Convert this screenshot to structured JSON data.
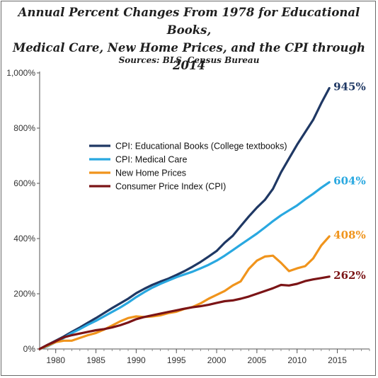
{
  "title_line1": "Annual Percent Changes From 1978 for Educational Books,",
  "title_line2": "Medical Care, New Home Prices, and the CPI through 2014",
  "subtitle": "Sources: BLS, Census Bureau",
  "chart_data": {
    "type": "line",
    "xlim": [
      1978,
      2019
    ],
    "ylim": [
      0,
      1000
    ],
    "x_ticks": [
      1980,
      1985,
      1990,
      1995,
      2000,
      2005,
      2010,
      2015
    ],
    "x_tick_labels": [
      "1980",
      "1985",
      "1990",
      "1995",
      "2000",
      "2005",
      "2010",
      "2015"
    ],
    "y_ticks": [
      0,
      200,
      400,
      600,
      800,
      1000
    ],
    "y_tick_labels": [
      "0%",
      "200%",
      "400%",
      "600%",
      "800%",
      "1,000%"
    ],
    "grid": false,
    "legend_position": "upper-left",
    "series": [
      {
        "name": "CPI: Educational Books  (College textbooks)",
        "color": "#1f3864",
        "end_label": "945%",
        "points": [
          [
            1978,
            0
          ],
          [
            1979,
            15
          ],
          [
            1980,
            30
          ],
          [
            1981,
            45
          ],
          [
            1982,
            62
          ],
          [
            1983,
            78
          ],
          [
            1984,
            95
          ],
          [
            1985,
            112
          ],
          [
            1986,
            130
          ],
          [
            1987,
            148
          ],
          [
            1988,
            165
          ],
          [
            1989,
            182
          ],
          [
            1990,
            202
          ],
          [
            1991,
            218
          ],
          [
            1992,
            232
          ],
          [
            1993,
            244
          ],
          [
            1994,
            255
          ],
          [
            1995,
            268
          ],
          [
            1996,
            282
          ],
          [
            1997,
            298
          ],
          [
            1998,
            315
          ],
          [
            1999,
            335
          ],
          [
            2000,
            355
          ],
          [
            2001,
            385
          ],
          [
            2002,
            410
          ],
          [
            2003,
            445
          ],
          [
            2004,
            480
          ],
          [
            2005,
            512
          ],
          [
            2006,
            540
          ],
          [
            2007,
            580
          ],
          [
            2008,
            640
          ],
          [
            2009,
            690
          ],
          [
            2010,
            740
          ],
          [
            2011,
            785
          ],
          [
            2012,
            830
          ],
          [
            2013,
            890
          ],
          [
            2014,
            945
          ]
        ]
      },
      {
        "name": "CPI: Medical Care",
        "color": "#29a8e0",
        "end_label": "604%",
        "points": [
          [
            1978,
            0
          ],
          [
            1979,
            10
          ],
          [
            1980,
            25
          ],
          [
            1981,
            40
          ],
          [
            1982,
            58
          ],
          [
            1983,
            72
          ],
          [
            1984,
            88
          ],
          [
            1985,
            102
          ],
          [
            1986,
            118
          ],
          [
            1987,
            134
          ],
          [
            1988,
            150
          ],
          [
            1989,
            168
          ],
          [
            1990,
            188
          ],
          [
            1991,
            206
          ],
          [
            1992,
            222
          ],
          [
            1993,
            236
          ],
          [
            1994,
            248
          ],
          [
            1995,
            260
          ],
          [
            1996,
            270
          ],
          [
            1997,
            280
          ],
          [
            1998,
            292
          ],
          [
            1999,
            305
          ],
          [
            2000,
            320
          ],
          [
            2001,
            338
          ],
          [
            2002,
            358
          ],
          [
            2003,
            378
          ],
          [
            2004,
            398
          ],
          [
            2005,
            418
          ],
          [
            2006,
            440
          ],
          [
            2007,
            463
          ],
          [
            2008,
            484
          ],
          [
            2009,
            502
          ],
          [
            2010,
            520
          ],
          [
            2011,
            542
          ],
          [
            2012,
            562
          ],
          [
            2013,
            584
          ],
          [
            2014,
            604
          ]
        ]
      },
      {
        "name": "New Home Prices",
        "color": "#f0941c",
        "end_label": "408%",
        "points": [
          [
            1978,
            0
          ],
          [
            1979,
            12
          ],
          [
            1980,
            25
          ],
          [
            1981,
            30
          ],
          [
            1982,
            30
          ],
          [
            1983,
            40
          ],
          [
            1984,
            50
          ],
          [
            1985,
            58
          ],
          [
            1986,
            70
          ],
          [
            1987,
            85
          ],
          [
            1988,
            100
          ],
          [
            1989,
            112
          ],
          [
            1990,
            118
          ],
          [
            1991,
            116
          ],
          [
            1992,
            118
          ],
          [
            1993,
            122
          ],
          [
            1994,
            130
          ],
          [
            1995,
            135
          ],
          [
            1996,
            145
          ],
          [
            1997,
            152
          ],
          [
            1998,
            165
          ],
          [
            1999,
            182
          ],
          [
            2000,
            196
          ],
          [
            2001,
            210
          ],
          [
            2002,
            230
          ],
          [
            2003,
            245
          ],
          [
            2004,
            290
          ],
          [
            2005,
            320
          ],
          [
            2006,
            335
          ],
          [
            2007,
            338
          ],
          [
            2008,
            312
          ],
          [
            2009,
            282
          ],
          [
            2010,
            292
          ],
          [
            2011,
            300
          ],
          [
            2012,
            328
          ],
          [
            2013,
            375
          ],
          [
            2014,
            408
          ]
        ]
      },
      {
        "name": "Consumer Price Index (CPI)",
        "color": "#7b1416",
        "end_label": "262%",
        "points": [
          [
            1978,
            0
          ],
          [
            1979,
            15
          ],
          [
            1980,
            28
          ],
          [
            1981,
            42
          ],
          [
            1982,
            50
          ],
          [
            1983,
            56
          ],
          [
            1984,
            62
          ],
          [
            1985,
            68
          ],
          [
            1986,
            72
          ],
          [
            1987,
            78
          ],
          [
            1988,
            86
          ],
          [
            1989,
            96
          ],
          [
            1990,
            108
          ],
          [
            1991,
            116
          ],
          [
            1992,
            122
          ],
          [
            1993,
            128
          ],
          [
            1994,
            134
          ],
          [
            1995,
            140
          ],
          [
            1996,
            146
          ],
          [
            1997,
            151
          ],
          [
            1998,
            155
          ],
          [
            1999,
            160
          ],
          [
            2000,
            167
          ],
          [
            2001,
            173
          ],
          [
            2002,
            176
          ],
          [
            2003,
            182
          ],
          [
            2004,
            190
          ],
          [
            2005,
            200
          ],
          [
            2006,
            210
          ],
          [
            2007,
            220
          ],
          [
            2008,
            232
          ],
          [
            2009,
            230
          ],
          [
            2010,
            236
          ],
          [
            2011,
            246
          ],
          [
            2012,
            252
          ],
          [
            2013,
            257
          ],
          [
            2014,
            262
          ]
        ]
      }
    ]
  }
}
